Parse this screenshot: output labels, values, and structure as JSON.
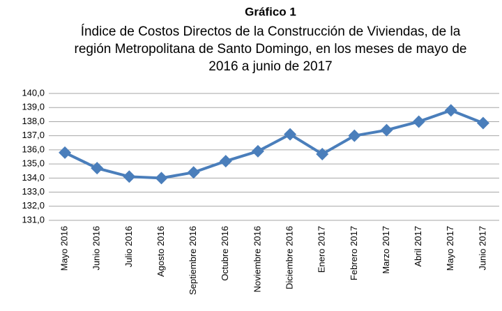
{
  "chart_data": {
    "type": "line",
    "title": "Gráfico 1",
    "subtitle": [
      "Índice de Costos Directos de la Construcción de Viviendas, de la",
      "región Metropolitana de Santo Domingo, en los meses de mayo de",
      "2016 a junio de 2017"
    ],
    "categories": [
      "Mayo 2016",
      "Junio 2016",
      "Julio 2016",
      "Agosto 2016",
      "Septiembre 2016",
      "Octubre 2016",
      "Noviembre 2016",
      "Diciembre 2016",
      "Enero 2017",
      "Febrero 2017",
      "Marzo 2017",
      "Abril 2017",
      "Mayo 2017",
      "Junio 2017"
    ],
    "values": [
      135.8,
      134.7,
      134.1,
      134.0,
      134.4,
      135.2,
      135.9,
      137.1,
      135.7,
      137.0,
      137.4,
      138.0,
      138.8,
      137.9
    ],
    "color": "#4a7ebb",
    "ylim": [
      131,
      140
    ],
    "yticks": [
      {
        "value": 131,
        "label": "131,0"
      },
      {
        "value": 132,
        "label": "132,0"
      },
      {
        "value": 133,
        "label": "133,0"
      },
      {
        "value": 134,
        "label": "134,0"
      },
      {
        "value": 135,
        "label": "135,0"
      },
      {
        "value": 136,
        "label": "136,0"
      },
      {
        "value": 137,
        "label": "137,0"
      },
      {
        "value": 138,
        "label": "138,0"
      },
      {
        "value": 139,
        "label": "139,0"
      },
      {
        "value": 140,
        "label": "140,0"
      }
    ],
    "grid": true
  }
}
